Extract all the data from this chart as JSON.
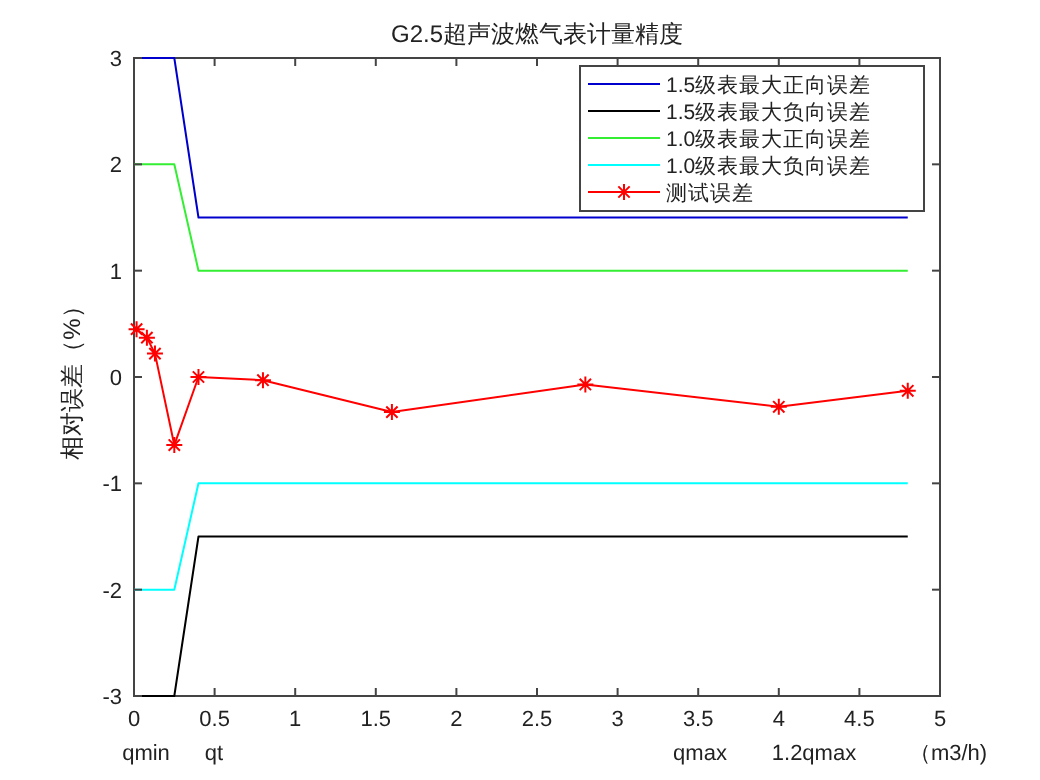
{
  "chart_data": {
    "type": "line",
    "title": "G2.5超声波燃气表计量精度",
    "xlabel": "（m3/h)",
    "ylabel": "相对误差（%）",
    "xlim": [
      0,
      5
    ],
    "ylim": [
      -3,
      3
    ],
    "xticks": [
      0,
      0.5,
      1,
      1.5,
      2,
      2.5,
      3,
      3.5,
      4,
      4.5,
      5
    ],
    "yticks": [
      -3,
      -2,
      -1,
      0,
      1,
      2,
      3
    ],
    "legend": "top right",
    "grid": false,
    "annotations": [
      "qmin",
      "qt",
      "qmax",
      "1.2qmax"
    ],
    "series": [
      {
        "name": "1.5级表最大正向误差",
        "color": "#0000cc",
        "x": [
          0,
          0.25,
          0.4,
          4.8
        ],
        "values": [
          3,
          3,
          1.5,
          1.5
        ]
      },
      {
        "name": "1.5级表最大负向误差",
        "color": "#000000",
        "x": [
          0,
          0.25,
          0.4,
          4.8
        ],
        "values": [
          -3,
          -3,
          -1.5,
          -1.5
        ]
      },
      {
        "name": "1.0级表最大正向误差",
        "color": "#33ee33",
        "x": [
          0,
          0.25,
          0.4,
          4.8
        ],
        "values": [
          2,
          2,
          1,
          1
        ]
      },
      {
        "name": "1.0级表最大负向误差",
        "color": "#00ffff",
        "x": [
          0,
          0.25,
          0.4,
          4.8
        ],
        "values": [
          -2,
          -2,
          -1,
          -1
        ]
      },
      {
        "name": "测试误差",
        "color": "#ff0000",
        "marker": "cross",
        "x": [
          0.016,
          0.08,
          0.13,
          0.25,
          0.4,
          0.8,
          1.6,
          2.8,
          4.0,
          4.8
        ],
        "values": [
          0.45,
          0.37,
          0.22,
          -0.64,
          0,
          -0.03,
          -0.33,
          -0.07,
          -0.28,
          -0.13
        ]
      }
    ]
  }
}
